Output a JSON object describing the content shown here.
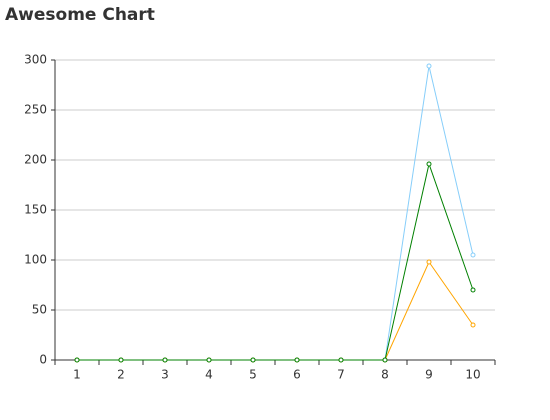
{
  "chart_data": {
    "type": "line",
    "title": "Awesome Chart",
    "categories": [
      "1",
      "2",
      "3",
      "4",
      "5",
      "6",
      "7",
      "8",
      "9",
      "10"
    ],
    "series": [
      {
        "color": "#87cefa",
        "values": [
          0,
          0,
          0,
          0,
          0,
          0,
          0,
          0,
          294,
          105
        ]
      },
      {
        "color": "#ffa500",
        "values": [
          0,
          0,
          0,
          0,
          0,
          0,
          0,
          0,
          98,
          35
        ]
      },
      {
        "color": "#008000",
        "values": [
          0,
          0,
          0,
          0,
          0,
          0,
          0,
          0,
          196,
          70
        ]
      }
    ],
    "ylim": [
      0,
      300
    ],
    "yticks": [
      0,
      50,
      100,
      150,
      200,
      250,
      300
    ],
    "grid": true
  }
}
